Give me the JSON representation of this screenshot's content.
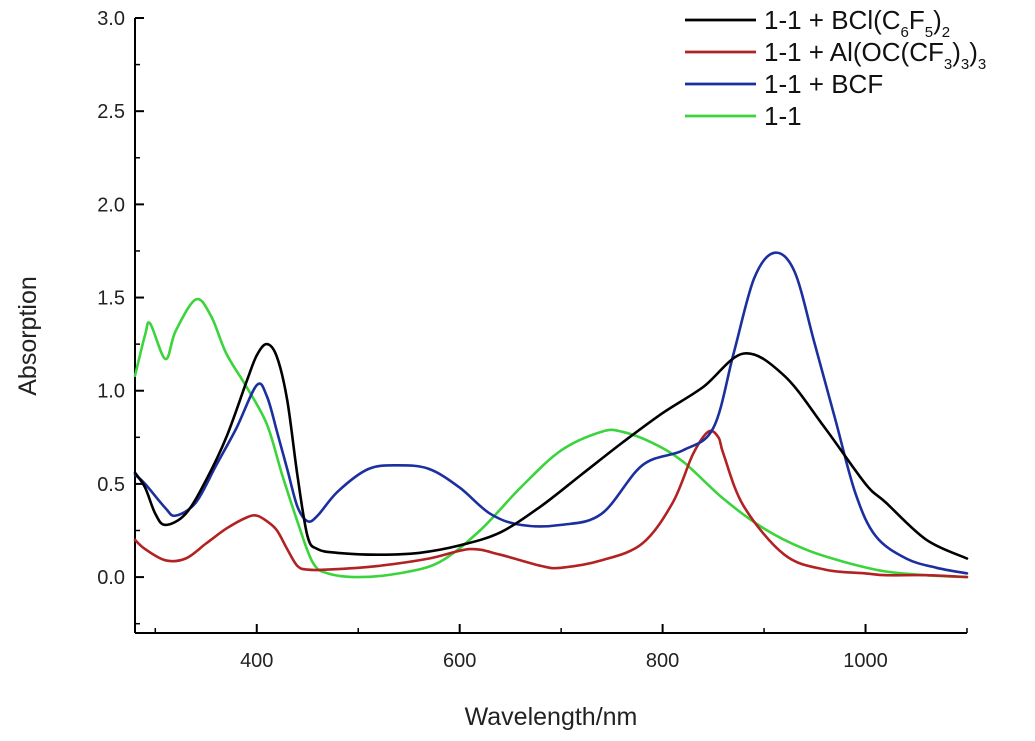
{
  "chart_data": {
    "type": "line",
    "xlabel": "Wavelength/nm",
    "ylabel": "Absorption",
    "xlim": [
      280,
      1100
    ],
    "ylim": [
      -0.3,
      3.0
    ],
    "x_ticks": [
      400,
      600,
      800,
      1000
    ],
    "y_ticks": [
      0.0,
      0.5,
      1.0,
      1.5,
      2.0,
      2.5,
      3.0
    ],
    "x_tick_labels": [
      "400",
      "600",
      "800",
      "1000"
    ],
    "y_tick_labels": [
      "0.0",
      "0.5",
      "1.0",
      "1.5",
      "2.0",
      "2.5",
      "3.0"
    ],
    "grid": false,
    "legend_position": "top-right",
    "series": [
      {
        "name": "1-1 + BCl(C6F5)2",
        "legend": {
          "base": "1-1 + BCl(C",
          "parts": [
            [
              "6",
              "F"
            ],
            [
              "5",
              ")"
            ],
            [
              "2",
              ""
            ]
          ]
        },
        "color": "#000000",
        "x": [
          280,
          290,
          300,
          310,
          330,
          350,
          370,
          390,
          400,
          410,
          420,
          430,
          440,
          450,
          460,
          480,
          520,
          560,
          600,
          640,
          680,
          720,
          760,
          800,
          840,
          880,
          920,
          960,
          1000,
          1020,
          1060,
          1100
        ],
        "y": [
          0.56,
          0.48,
          0.34,
          0.28,
          0.34,
          0.52,
          0.75,
          1.05,
          1.19,
          1.25,
          1.18,
          0.95,
          0.55,
          0.22,
          0.15,
          0.13,
          0.12,
          0.13,
          0.17,
          0.24,
          0.38,
          0.55,
          0.72,
          0.88,
          1.02,
          1.2,
          1.08,
          0.8,
          0.5,
          0.4,
          0.2,
          0.1
        ]
      },
      {
        "name": "1-1 + Al(OC(CF3)3)3",
        "legend": {
          "base": "1-1 + Al(OC(CF",
          "parts": [
            [
              "3",
              ")"
            ],
            [
              "3",
              ")"
            ],
            [
              "3",
              ""
            ]
          ]
        },
        "color": "#b22222",
        "x": [
          280,
          290,
          310,
          330,
          350,
          370,
          390,
          400,
          410,
          420,
          430,
          440,
          450,
          470,
          520,
          570,
          610,
          640,
          680,
          700,
          740,
          780,
          810,
          830,
          845,
          855,
          860,
          880,
          920,
          960,
          1000,
          1020,
          1060,
          1100
        ],
        "y": [
          0.2,
          0.15,
          0.09,
          0.1,
          0.18,
          0.26,
          0.32,
          0.33,
          0.3,
          0.25,
          0.15,
          0.06,
          0.04,
          0.04,
          0.06,
          0.1,
          0.15,
          0.12,
          0.06,
          0.05,
          0.09,
          0.18,
          0.4,
          0.66,
          0.78,
          0.75,
          0.66,
          0.38,
          0.12,
          0.04,
          0.02,
          0.01,
          0.01,
          0.0
        ]
      },
      {
        "name": "1-1 + BCF",
        "legend": {
          "base": "1-1 + BCF",
          "parts": []
        },
        "color": "#1c2f9e",
        "x": [
          280,
          290,
          310,
          320,
          340,
          360,
          380,
          400,
          410,
          420,
          430,
          440,
          450,
          460,
          480,
          510,
          540,
          570,
          600,
          630,
          660,
          700,
          740,
          780,
          820,
          850,
          870,
          890,
          910,
          930,
          950,
          970,
          990,
          1010,
          1040,
          1070,
          1100
        ],
        "y": [
          0.55,
          0.5,
          0.37,
          0.33,
          0.4,
          0.6,
          0.8,
          1.03,
          0.97,
          0.78,
          0.58,
          0.38,
          0.3,
          0.33,
          0.46,
          0.58,
          0.6,
          0.58,
          0.48,
          0.34,
          0.28,
          0.28,
          0.34,
          0.6,
          0.68,
          0.8,
          1.2,
          1.6,
          1.74,
          1.64,
          1.25,
          0.85,
          0.45,
          0.22,
          0.1,
          0.05,
          0.02
        ]
      },
      {
        "name": "1-1",
        "legend": {
          "base": "1-1",
          "parts": []
        },
        "color": "#3cd43c",
        "x": [
          280,
          290,
          295,
          310,
          320,
          340,
          355,
          370,
          390,
          410,
          425,
          440,
          455,
          470,
          500,
          540,
          580,
          620,
          660,
          700,
          740,
          760,
          790,
          820,
          860,
          900,
          940,
          980,
          1020,
          1060,
          1100
        ],
        "y": [
          1.08,
          1.3,
          1.36,
          1.17,
          1.32,
          1.49,
          1.4,
          1.2,
          1.02,
          0.82,
          0.55,
          0.3,
          0.08,
          0.02,
          0.0,
          0.02,
          0.08,
          0.25,
          0.48,
          0.68,
          0.78,
          0.78,
          0.72,
          0.62,
          0.42,
          0.26,
          0.15,
          0.08,
          0.03,
          0.01,
          0.0
        ]
      }
    ]
  }
}
